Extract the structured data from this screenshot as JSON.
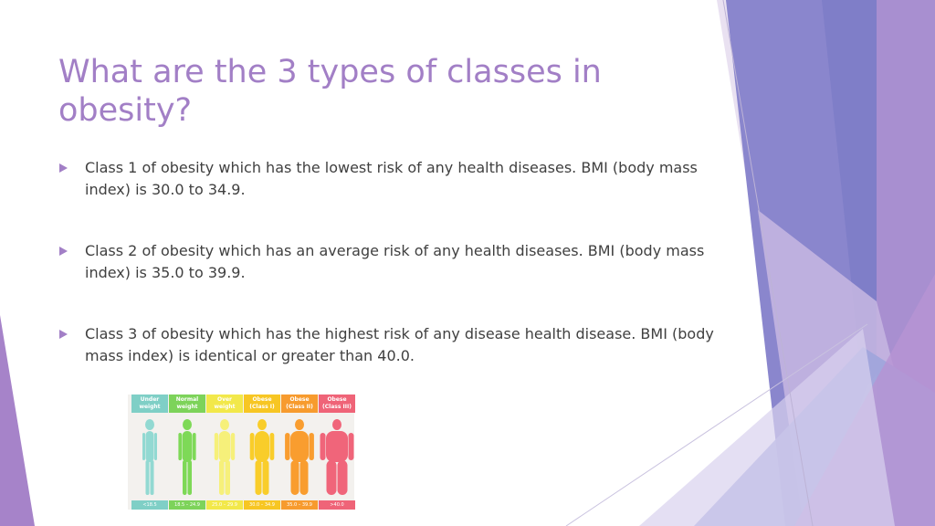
{
  "slide": {
    "title": "What are the 3 types of classes in obesity?",
    "bullets": [
      "Class 1 of obesity which has the lowest risk of any health diseases. BMI (body mass index) is 30.0 to 34.9.",
      "Class 2 of obesity which has an average risk of any health diseases. BMI (body mass index) is 35.0 to 39.9.",
      "Class 3 of obesity which has the highest risk of any disease health disease. BMI (body mass index) is identical or greater than 40.0."
    ]
  },
  "bmi_chart": {
    "categories": [
      {
        "label": "Under weight",
        "range": "<18.5",
        "color": "#7fcfc6",
        "fig_color": "#92d9d2"
      },
      {
        "label": "Normal weight",
        "range": "18.5 – 24.9",
        "color": "#7dd35a",
        "fig_color": "#7ed957"
      },
      {
        "label": "Over weight",
        "range": "25.0 – 29.9",
        "color": "#f2e84a",
        "fig_color": "#f6f07a"
      },
      {
        "label": "Obese (Class I)",
        "range": "30.0 – 34.9",
        "color": "#f7c623",
        "fig_color": "#f9cd2a"
      },
      {
        "label": "Obese (Class II)",
        "range": "35.0 – 39.9",
        "color": "#f79b2e",
        "fig_color": "#f99d2f"
      },
      {
        "label": "Obese (Class III)",
        "range": ">40.0",
        "color": "#ef6478",
        "fig_color": "#f0657a"
      }
    ]
  },
  "colors": {
    "accent": "#a27fc6",
    "body_text": "#404040"
  }
}
